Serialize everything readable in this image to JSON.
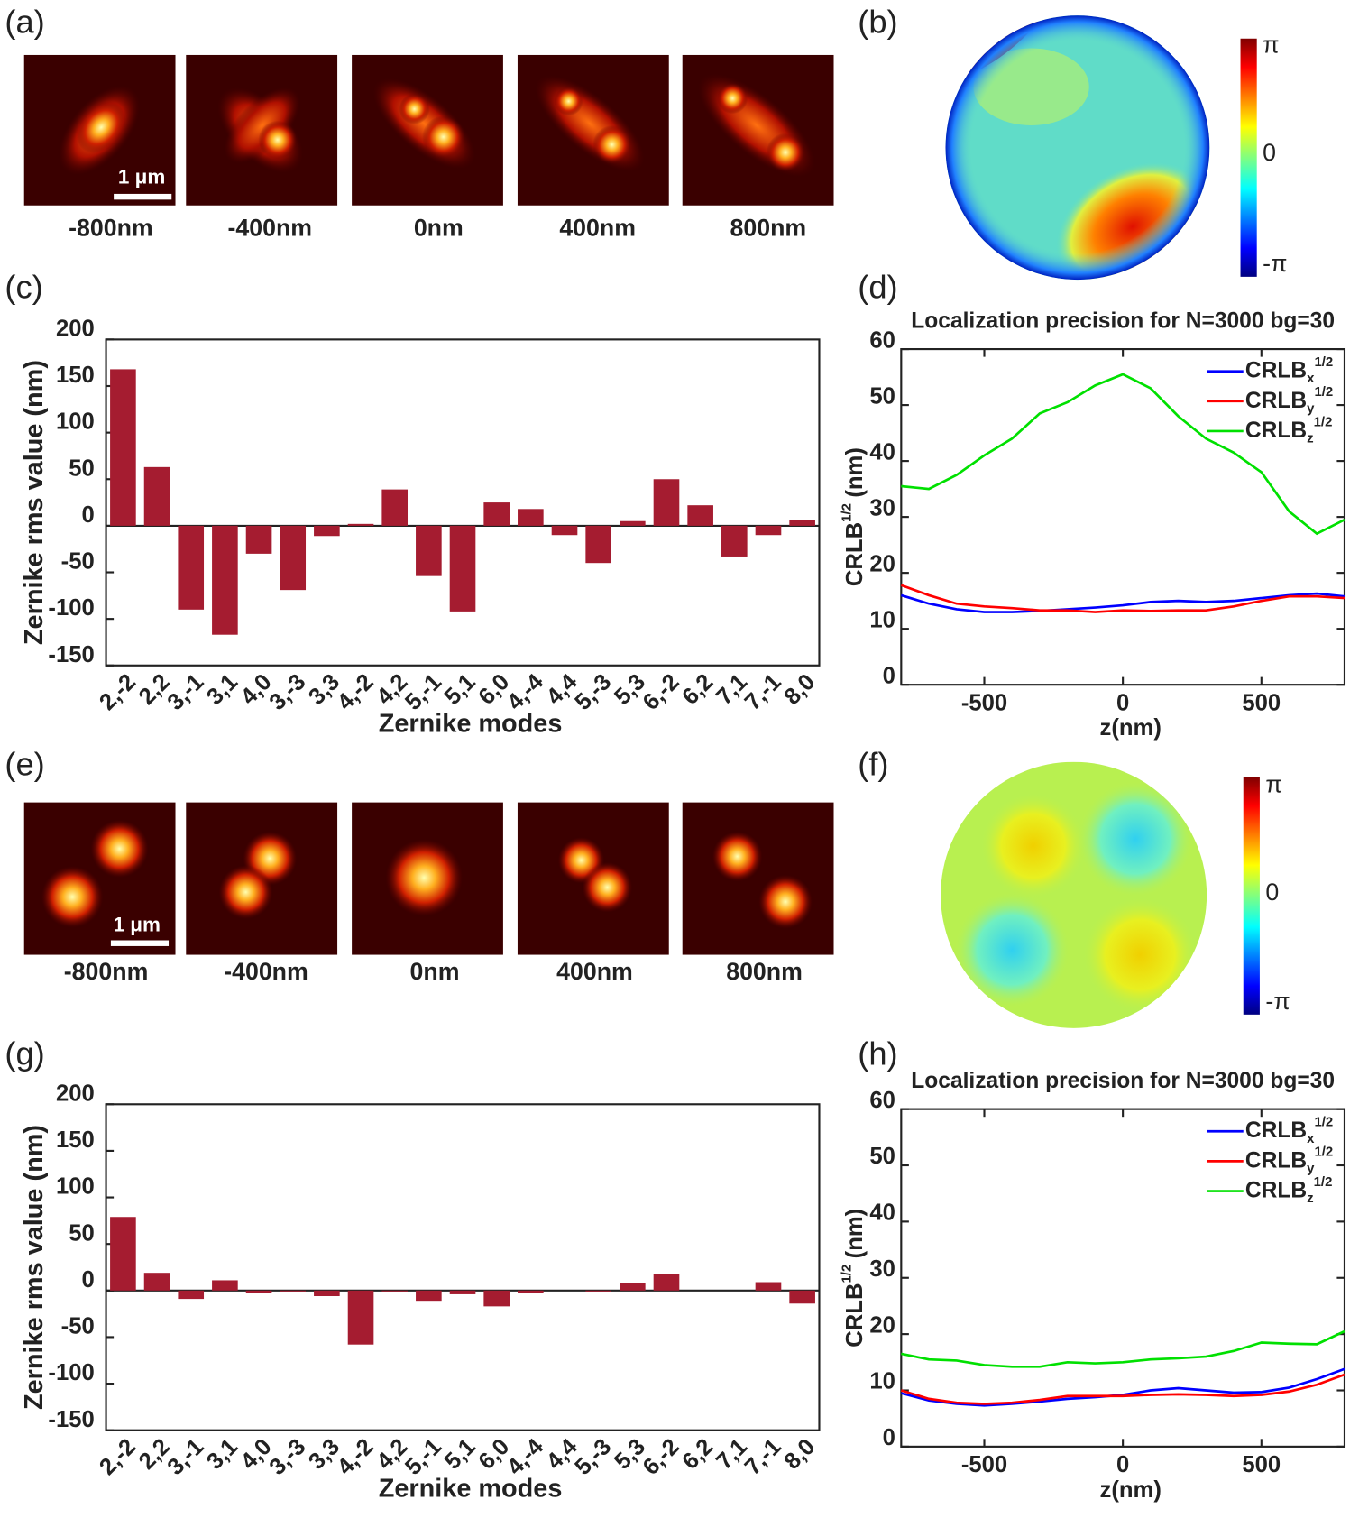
{
  "panel_labels": [
    "(a)",
    "(b)",
    "(c)",
    "(d)",
    "(e)",
    "(f)",
    "(g)",
    "(h)"
  ],
  "psf_rows": [
    {
      "scale_bar": "1 μm",
      "z_labels": [
        "-800nm",
        "-400nm",
        "0nm",
        "400nm",
        "800nm"
      ]
    },
    {
      "scale_bar": "1 μm",
      "z_labels": [
        "-800nm",
        "-400nm",
        "0nm",
        "400nm",
        "800nm"
      ]
    }
  ],
  "phase_maps": [
    {
      "colorbar_labels": [
        "π",
        "0",
        "-π"
      ]
    },
    {
      "colorbar_labels": [
        "π",
        "0",
        "-π"
      ]
    }
  ],
  "chart_data": [
    {
      "type": "bar",
      "xlabel": "Zernike modes",
      "ylabel": "Zernike rms value (nm)",
      "color": "#a51c30",
      "categories": [
        "2,-2",
        "2,2",
        "3,-1",
        "3,1",
        "4,0",
        "3,-3",
        "3,3",
        "4,-2",
        "4,2",
        "5,-1",
        "5,1",
        "6,0",
        "4,-4",
        "4,4",
        "5,-3",
        "5,3",
        "6,-2",
        "6,2",
        "7,1",
        "7,-1",
        "8,0"
      ],
      "values": [
        168,
        63,
        -90,
        -117,
        -30,
        -69,
        -11,
        2,
        39,
        -54,
        -92,
        25,
        18,
        -10,
        -40,
        5,
        50,
        22,
        -33,
        -10,
        6
      ],
      "ylim": [
        -150,
        200
      ],
      "yticks": [
        -150,
        -100,
        -50,
        0,
        50,
        100,
        150,
        200
      ]
    },
    {
      "type": "line",
      "title": "Localization precision for N=3000 bg=30",
      "xlabel": "z(nm)",
      "ylabel_parts": [
        "CRLB",
        "1/2",
        "(nm)"
      ],
      "x": [
        -800,
        -700,
        -600,
        -500,
        -400,
        -300,
        -200,
        -100,
        0,
        100,
        200,
        300,
        400,
        500,
        600,
        700,
        800
      ],
      "series": [
        {
          "name": "CRLB",
          "name_sub": "x",
          "name_sup": "1/2",
          "color": "#0000ff",
          "values": [
            16,
            14.5,
            13.5,
            13,
            13,
            13.2,
            13.5,
            13.8,
            14.2,
            14.8,
            15,
            14.8,
            15,
            15.5,
            16,
            16.3,
            15.8
          ]
        },
        {
          "name": "CRLB",
          "name_sub": "y",
          "name_sup": "1/2",
          "color": "#ff0000",
          "values": [
            17.8,
            16,
            14.5,
            14,
            13.7,
            13.3,
            13.3,
            13,
            13.3,
            13.2,
            13.3,
            13.3,
            14,
            15,
            15.8,
            15.8,
            15.5
          ]
        },
        {
          "name": "CRLB",
          "name_sub": "z",
          "name_sup": "1/2",
          "color": "#00e000",
          "values": [
            35.5,
            35,
            37.5,
            41,
            44,
            48.5,
            50.5,
            53.5,
            55.5,
            53,
            48,
            44,
            41.5,
            38,
            31,
            27,
            29.5
          ]
        }
      ],
      "xlim": [
        -800,
        800
      ],
      "xticks": [
        -500,
        0,
        500
      ],
      "ylim": [
        0,
        60
      ],
      "yticks": [
        0,
        10,
        20,
        30,
        40,
        50,
        60
      ],
      "legend": "upper right"
    },
    {
      "type": "bar",
      "xlabel": "Zernike modes",
      "ylabel": "Zernike rms value (nm)",
      "color": "#a51c30",
      "categories": [
        "2,-2",
        "2,2",
        "3,-1",
        "3,1",
        "4,0",
        "3,-3",
        "3,3",
        "4,-2",
        "4,2",
        "5,-1",
        "5,1",
        "6,0",
        "4,-4",
        "4,4",
        "5,-3",
        "5,3",
        "6,-2",
        "6,2",
        "7,1",
        "7,-1",
        "8,0"
      ],
      "values": [
        79,
        19,
        -9,
        11,
        -3,
        -1,
        -6,
        -58,
        -1,
        -11,
        -4,
        -17,
        -3,
        0,
        -1,
        8,
        18,
        0,
        0,
        9,
        -14
      ],
      "ylim": [
        -150,
        200
      ],
      "yticks": [
        -150,
        -100,
        -50,
        0,
        50,
        100,
        150,
        200
      ]
    },
    {
      "type": "line",
      "title": "Localization precision for N=3000 bg=30",
      "xlabel": "z(nm)",
      "ylabel_parts": [
        "CRLB",
        "1/2",
        "(nm)"
      ],
      "x": [
        -800,
        -700,
        -600,
        -500,
        -400,
        -300,
        -200,
        -100,
        0,
        100,
        200,
        300,
        400,
        500,
        600,
        700,
        800
      ],
      "series": [
        {
          "name": "CRLB",
          "name_sub": "x",
          "name_sup": "1/2",
          "color": "#0000ff",
          "values": [
            9.5,
            8.2,
            7.6,
            7.3,
            7.6,
            8,
            8.5,
            8.8,
            9.2,
            10,
            10.4,
            10,
            9.6,
            9.7,
            10.5,
            12,
            13.8
          ]
        },
        {
          "name": "CRLB",
          "name_sub": "y",
          "name_sup": "1/2",
          "color": "#ff0000",
          "values": [
            10,
            8.5,
            7.8,
            7.6,
            7.8,
            8.3,
            9,
            9,
            9,
            9.2,
            9.3,
            9.2,
            9,
            9.2,
            9.8,
            11,
            12.8
          ]
        },
        {
          "name": "CRLB",
          "name_sub": "z",
          "name_sup": "1/2",
          "color": "#00e000",
          "values": [
            16.5,
            15.5,
            15.3,
            14.5,
            14.2,
            14.2,
            15,
            14.8,
            15,
            15.5,
            15.7,
            16,
            17,
            18.5,
            18.3,
            18.2,
            20.5
          ]
        }
      ],
      "xlim": [
        -800,
        800
      ],
      "xticks": [
        -500,
        0,
        500
      ],
      "ylim": [
        0,
        60
      ],
      "yticks": [
        0,
        10,
        20,
        30,
        40,
        50,
        60
      ],
      "legend": "upper right"
    }
  ]
}
